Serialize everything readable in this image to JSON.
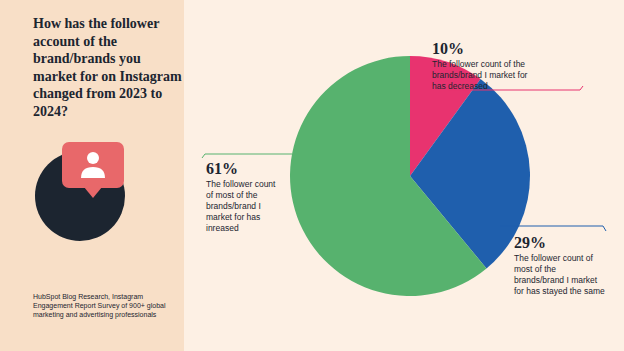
{
  "chart_data": {
    "type": "pie",
    "title": "How has the follower account of the brand/brands you market for on Instagram changed from 2023 to 2024?",
    "categories": [
      "The follower count of the brands/brand I market for has decreased",
      "The follower count of most of the brands/brand I market for has stayed the same",
      "The follower count of most of the brands/brand I market for has inreased"
    ],
    "values": [
      10,
      29,
      61
    ],
    "value_labels": [
      "10%",
      "29%",
      "61%"
    ],
    "colors": [
      "#e8336f",
      "#1f5fad",
      "#57b26e"
    ],
    "annotations": [
      "HubSpot Blog Research, Instagram Engagement Report Survey of 900+ global marketing and advertising professionals"
    ]
  }
}
